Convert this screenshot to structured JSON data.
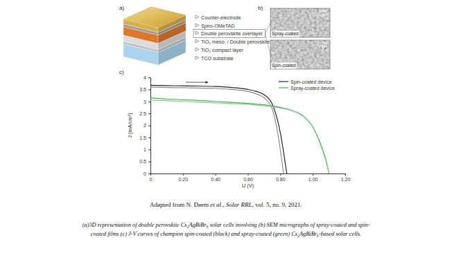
{
  "panels": {
    "a": {
      "label": "a)",
      "layers": [
        {
          "text": "Counter-electrode",
          "boxed": false
        },
        {
          "text": "Spiro-OMeTAD",
          "boxed": false
        },
        {
          "text": "Double perovskite overlayer",
          "boxed": true
        },
        {
          "text": "TiO₂ meso. / Double perovskite",
          "boxed": false
        },
        {
          "text": "TiO₂ compact layer",
          "boxed": false
        },
        {
          "text": "TCO substrate",
          "boxed": false
        }
      ]
    },
    "b": {
      "label": "b)",
      "images": [
        {
          "label": "Spray-coated",
          "scale": "1 µm"
        },
        {
          "label": "Spin-coated",
          "scale": "1 µm"
        }
      ]
    },
    "c": {
      "label": "c)"
    }
  },
  "chart_data": {
    "type": "line",
    "xlabel": "U (V)",
    "ylabel": "J (mA/cm²)",
    "x": [
      0,
      0.1,
      0.2,
      0.3,
      0.4,
      0.5,
      0.6,
      0.65,
      0.7,
      0.75,
      0.8,
      0.82,
      0.84,
      0.9,
      0.95,
      1.0,
      1.05,
      1.08,
      1.1
    ],
    "series": [
      {
        "name": "Spin-coated device",
        "color": "#222222",
        "values": [
          3.67,
          3.66,
          3.65,
          3.64,
          3.62,
          3.58,
          3.5,
          3.42,
          3.28,
          2.9,
          1.7,
          0.9,
          0,
          null,
          null,
          null,
          null,
          null,
          null
        ]
      },
      {
        "color": "#8a8a8a",
        "values": [
          3.6,
          3.58,
          3.57,
          3.56,
          3.54,
          3.5,
          3.42,
          3.32,
          3.15,
          2.7,
          1.0,
          0,
          null,
          null,
          null,
          null,
          null,
          null,
          null
        ]
      },
      {
        "name": "Spray-coated device",
        "color": "#3fae55",
        "values": [
          3.15,
          3.1,
          3.07,
          3.04,
          3.0,
          2.96,
          2.92,
          2.89,
          2.86,
          2.81,
          2.75,
          2.72,
          2.69,
          2.55,
          2.35,
          1.95,
          1.2,
          0.6,
          0
        ]
      },
      {
        "color": "#86c98a",
        "values": [
          3.05,
          3.03,
          3.0,
          2.97,
          2.94,
          2.91,
          2.88,
          2.85,
          2.82,
          2.78,
          2.72,
          2.7,
          2.67,
          2.54,
          2.33,
          1.93,
          1.15,
          0.55,
          0
        ]
      }
    ],
    "xlim": [
      0,
      1.2
    ],
    "ylim": [
      0,
      4
    ],
    "xticks": [
      0,
      {
        "value": 0.2,
        "label": "0.20"
      },
      {
        "value": 0.4,
        "label": "0.40"
      },
      {
        "value": 0.6,
        "label": "0.60"
      },
      {
        "value": 0.8,
        "label": "0.80"
      },
      {
        "value": 1.0,
        "label": "1.00"
      },
      {
        "value": 1.2,
        "label": "1.20"
      }
    ],
    "yticks": [
      0,
      0.5,
      1,
      1.5,
      2,
      2.5,
      3,
      3.5,
      4
    ],
    "grid": false,
    "legend": "top-right"
  },
  "citation": [
    "Adapted from N. Daem ",
    "et al.",
    ", ",
    "Solar RRL",
    ", vol. 5, no. 9, 2021."
  ],
  "caption": [
    "(a)3D representation of double perovskite Cs₂AgBiBr₆ solar cells involving (b) SEM micrographs of spray-coated and spin-",
    "coated films (c) J-V curves of champion spin-coated (black) and spray-coated (green) Cs₂AgBiBr₆-based solar cells."
  ]
}
